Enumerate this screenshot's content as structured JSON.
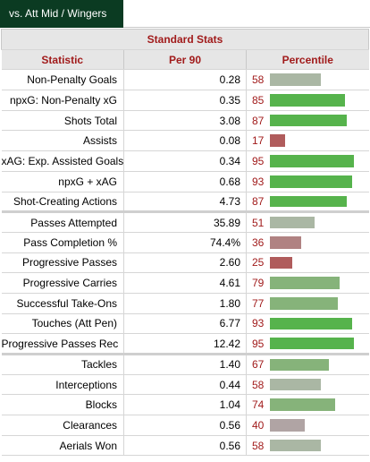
{
  "tab": {
    "label": "vs. Att Mid / Wingers"
  },
  "table": {
    "caption": "Standard Stats",
    "headers": {
      "statistic": "Statistic",
      "per90": "Per 90",
      "percentile": "Percentile"
    },
    "colors": {
      "high": "#56b34c",
      "mid_high": "#86b37a",
      "neutral": "#aab7a4",
      "neutral_low": "#b0a4a4",
      "low_mid": "#b08282",
      "low": "#b05c5c",
      "text_accent": "#a11b1b"
    },
    "groups": [
      {
        "rows": [
          {
            "statistic": "Non-Penalty Goals",
            "per90": "0.28",
            "percentile": 58,
            "level": "neutral"
          },
          {
            "statistic": "npxG: Non-Penalty xG",
            "per90": "0.35",
            "percentile": 85,
            "level": "high"
          },
          {
            "statistic": "Shots Total",
            "per90": "3.08",
            "percentile": 87,
            "level": "high"
          },
          {
            "statistic": "Assists",
            "per90": "0.08",
            "percentile": 17,
            "level": "low"
          },
          {
            "statistic": "xAG: Exp. Assisted Goals",
            "per90": "0.34",
            "percentile": 95,
            "level": "high"
          },
          {
            "statistic": "npxG + xAG",
            "per90": "0.68",
            "percentile": 93,
            "level": "high"
          },
          {
            "statistic": "Shot-Creating Actions",
            "per90": "4.73",
            "percentile": 87,
            "level": "high"
          }
        ]
      },
      {
        "rows": [
          {
            "statistic": "Passes Attempted",
            "per90": "35.89",
            "percentile": 51,
            "level": "neutral_low_grey"
          },
          {
            "statistic": "Pass Completion %",
            "per90": "74.4%",
            "percentile": 36,
            "level": "low_mid"
          },
          {
            "statistic": "Progressive Passes",
            "per90": "2.60",
            "percentile": 25,
            "level": "low"
          },
          {
            "statistic": "Progressive Carries",
            "per90": "4.61",
            "percentile": 79,
            "level": "mid_high"
          },
          {
            "statistic": "Successful Take-Ons",
            "per90": "1.80",
            "percentile": 77,
            "level": "mid_high"
          },
          {
            "statistic": "Touches (Att Pen)",
            "per90": "6.77",
            "percentile": 93,
            "level": "high"
          },
          {
            "statistic": "Progressive Passes Rec",
            "per90": "12.42",
            "percentile": 95,
            "level": "high"
          }
        ]
      },
      {
        "rows": [
          {
            "statistic": "Tackles",
            "per90": "1.40",
            "percentile": 67,
            "level": "mid_high"
          },
          {
            "statistic": "Interceptions",
            "per90": "0.44",
            "percentile": 58,
            "level": "neutral"
          },
          {
            "statistic": "Blocks",
            "per90": "1.04",
            "percentile": 74,
            "level": "mid_high"
          },
          {
            "statistic": "Clearances",
            "per90": "0.56",
            "percentile": 40,
            "level": "neutral_low"
          },
          {
            "statistic": "Aerials Won",
            "per90": "0.56",
            "percentile": 58,
            "level": "neutral"
          }
        ]
      }
    ]
  }
}
